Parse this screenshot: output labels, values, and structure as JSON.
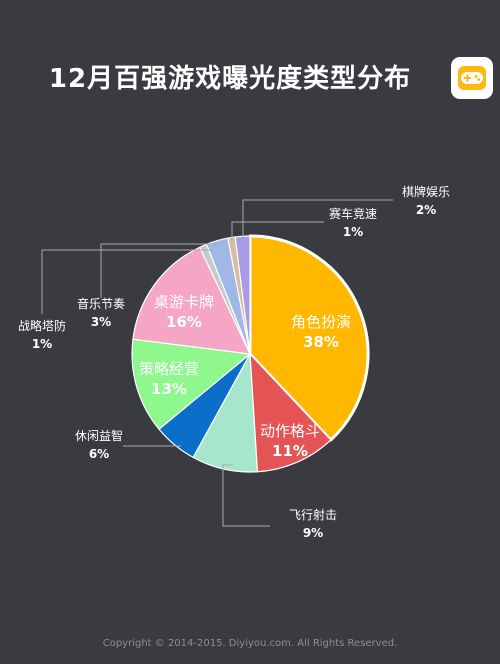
{
  "title": "12月百强游戏曝光度类型分布",
  "logo_icon": "gamepad-icon",
  "footer": "Copyright © 2014-2015. Diyiyou.com. All Rights Reserved.",
  "colors": {
    "background": "#3a3b40",
    "leader": "#aaaaaa"
  },
  "chart_data": {
    "type": "pie",
    "title": "12月百强游戏曝光度类型分布",
    "labels_format": "name + percent",
    "slices": [
      {
        "name": "角色扮演",
        "value": 38,
        "label": "38%",
        "color": "#ffb700"
      },
      {
        "name": "动作格斗",
        "value": 11,
        "label": "11%",
        "color": "#e55454"
      },
      {
        "name": "飞行射击",
        "value": 9,
        "label": "9%",
        "color": "#a6e6cc"
      },
      {
        "name": "休闲益智",
        "value": 6,
        "label": "6%",
        "color": "#0b6fc9"
      },
      {
        "name": "策略经营",
        "value": 13,
        "label": "13%",
        "color": "#8ef78e"
      },
      {
        "name": "桌游卡牌",
        "value": 16,
        "label": "16%",
        "color": "#f4a6c4"
      },
      {
        "name": "战略塔防",
        "value": 1,
        "label": "1%",
        "color": "#c9c9c9"
      },
      {
        "name": "音乐节奏",
        "value": 3,
        "label": "3%",
        "color": "#9fb8e8"
      },
      {
        "name": "赛车竞速",
        "value": 1,
        "label": "1%",
        "color": "#d9bda3"
      },
      {
        "name": "棋牌娱乐",
        "value": 2,
        "label": "2%",
        "color": "#a99be6"
      }
    ]
  }
}
